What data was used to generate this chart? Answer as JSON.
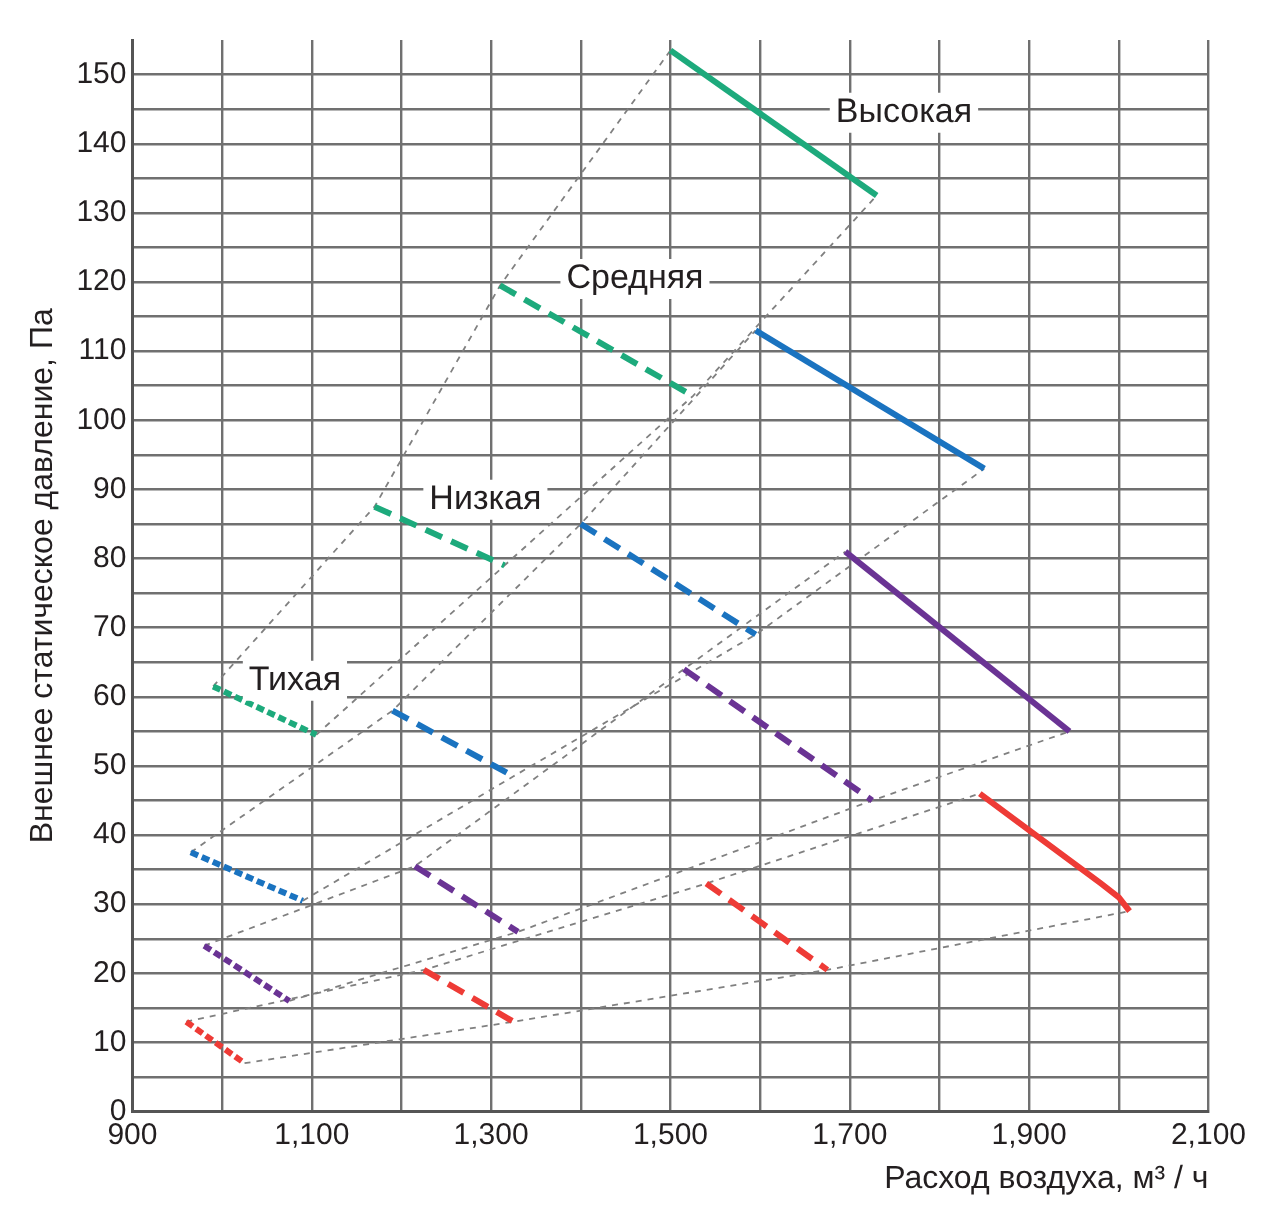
{
  "chart_data": {
    "type": "line",
    "xlabel": "Расход воздуха, м³ / ч",
    "ylabel": "Внешнее статическое давление, Па",
    "xlim": [
      900,
      2100
    ],
    "ylim": [
      0,
      155
    ],
    "xticks": [
      900,
      {
        "value": 1000,
        "label": null
      },
      {
        "value": 1100,
        "label": "1,100"
      },
      {
        "value": 1200,
        "label": null
      },
      {
        "value": 1300,
        "label": "1,300"
      },
      {
        "value": 1400,
        "label": null
      },
      {
        "value": 1500,
        "label": "1,500"
      },
      {
        "value": 1600,
        "label": null
      },
      {
        "value": 1700,
        "label": "1,700"
      },
      {
        "value": 1800,
        "label": null
      },
      {
        "value": 1900,
        "label": "1,900"
      },
      {
        "value": 2000,
        "label": null
      },
      {
        "value": 2100,
        "label": "2,100"
      }
    ],
    "yticks": [
      0,
      {
        "value": 5,
        "label": null
      },
      10,
      {
        "value": 15,
        "label": null
      },
      20,
      {
        "value": 25,
        "label": null
      },
      30,
      {
        "value": 35,
        "label": null
      },
      40,
      {
        "value": 45,
        "label": null
      },
      50,
      {
        "value": 55,
        "label": null
      },
      60,
      {
        "value": 65,
        "label": null
      },
      70,
      {
        "value": 75,
        "label": null
      },
      80,
      {
        "value": 85,
        "label": null
      },
      90,
      {
        "value": 95,
        "label": null
      },
      100,
      {
        "value": 105,
        "label": null
      },
      110,
      {
        "value": 115,
        "label": null
      },
      120,
      {
        "value": 125,
        "label": null
      },
      130,
      {
        "value": 135,
        "label": null
      },
      140,
      {
        "value": 145,
        "label": null
      },
      150
    ],
    "grid": true,
    "legend": false,
    "marker": "none",
    "series": [
      {
        "color": "#808080",
        "line_style": "dotted",
        "x": [
          990,
          1170,
          1310,
          1500
        ],
        "values": [
          61.5,
          87.5,
          119.5,
          153.5
        ]
      },
      {
        "color": "#808080",
        "line_style": "dotted",
        "x": [
          1105,
          1315,
          1525,
          1730
        ],
        "values": [
          54.5,
          79,
          103.5,
          132.5
        ]
      },
      {
        "color": "#808080",
        "line_style": "dotted",
        "x": [
          965,
          1190,
          1400,
          1595
        ],
        "values": [
          37.5,
          58,
          85,
          113
        ]
      },
      {
        "color": "#808080",
        "line_style": "dotted",
        "x": [
          1090,
          1325,
          1595,
          1850
        ],
        "values": [
          30.5,
          48.5,
          69,
          93
        ]
      },
      {
        "color": "#808080",
        "line_style": "dotted",
        "x": [
          980,
          1215,
          1515,
          1695
        ],
        "values": [
          24,
          35.5,
          64,
          81
        ]
      },
      {
        "color": "#808080",
        "line_style": "dotted",
        "x": [
          1075,
          1330,
          1725,
          1945
        ],
        "values": [
          16,
          26,
          45,
          55
        ]
      },
      {
        "color": "#808080",
        "line_style": "dotted",
        "x": [
          960,
          1225,
          1540,
          1845
        ],
        "values": [
          13,
          20.5,
          33,
          46
        ]
      },
      {
        "color": "#808080",
        "line_style": "dotted",
        "x": [
          1025,
          1325,
          1675,
          2012
        ],
        "values": [
          7,
          13,
          20.5,
          29
        ]
      },
      {
        "color": "#1daa7c",
        "line_style": "solid",
        "x": [
          1500,
          1730
        ],
        "values": [
          153.5,
          132.5
        ]
      },
      {
        "color": "#1a73c0",
        "line_style": "solid",
        "x": [
          1595,
          1850
        ],
        "values": [
          113,
          93
        ]
      },
      {
        "color": "#6a3394",
        "line_style": "solid",
        "x": [
          1695,
          1945
        ],
        "values": [
          81,
          55
        ]
      },
      {
        "color": "#ee3b36",
        "line_style": "solid",
        "x": [
          1845,
          1980,
          2000,
          2012
        ],
        "values": [
          46,
          33,
          31,
          29
        ]
      },
      {
        "color": "#1daa7c",
        "line_style": "dashed",
        "x": [
          1310,
          1525
        ],
        "values": [
          119.5,
          103.5
        ]
      },
      {
        "color": "#1a73c0",
        "line_style": "dashed",
        "x": [
          1400,
          1595
        ],
        "values": [
          85,
          69
        ]
      },
      {
        "color": "#6a3394",
        "line_style": "dashed",
        "x": [
          1515,
          1725
        ],
        "values": [
          64,
          45
        ]
      },
      {
        "color": "#ee3b36",
        "line_style": "dashed",
        "x": [
          1540,
          1675
        ],
        "values": [
          33,
          20.5
        ]
      },
      {
        "color": "#1daa7c",
        "line_style": "dashed",
        "x": [
          1170,
          1315
        ],
        "values": [
          87.5,
          79
        ]
      },
      {
        "color": "#1a73c0",
        "line_style": "dashed",
        "x": [
          1190,
          1325
        ],
        "values": [
          58,
          48.5
        ]
      },
      {
        "color": "#6a3394",
        "line_style": "dashed",
        "x": [
          1215,
          1330
        ],
        "values": [
          35.5,
          26
        ]
      },
      {
        "color": "#ee3b36",
        "line_style": "dashed",
        "x": [
          1225,
          1325
        ],
        "values": [
          20.5,
          13
        ]
      },
      {
        "color": "#1daa7c",
        "line_style": "dotted",
        "x": [
          990,
          1105
        ],
        "values": [
          61.5,
          54.5
        ]
      },
      {
        "color": "#1a73c0",
        "line_style": "dotted",
        "x": [
          965,
          1090
        ],
        "values": [
          37.5,
          30.5
        ]
      },
      {
        "color": "#6a3394",
        "line_style": "dotted",
        "x": [
          980,
          1075
        ],
        "values": [
          24,
          16
        ]
      },
      {
        "color": "#ee3b36",
        "line_style": "dotted",
        "x": [
          960,
          1025
        ],
        "values": [
          13,
          7
        ]
      }
    ],
    "annotations": [
      "Высокая",
      "Средняя",
      "Низкая",
      "Тихая"
    ]
  }
}
